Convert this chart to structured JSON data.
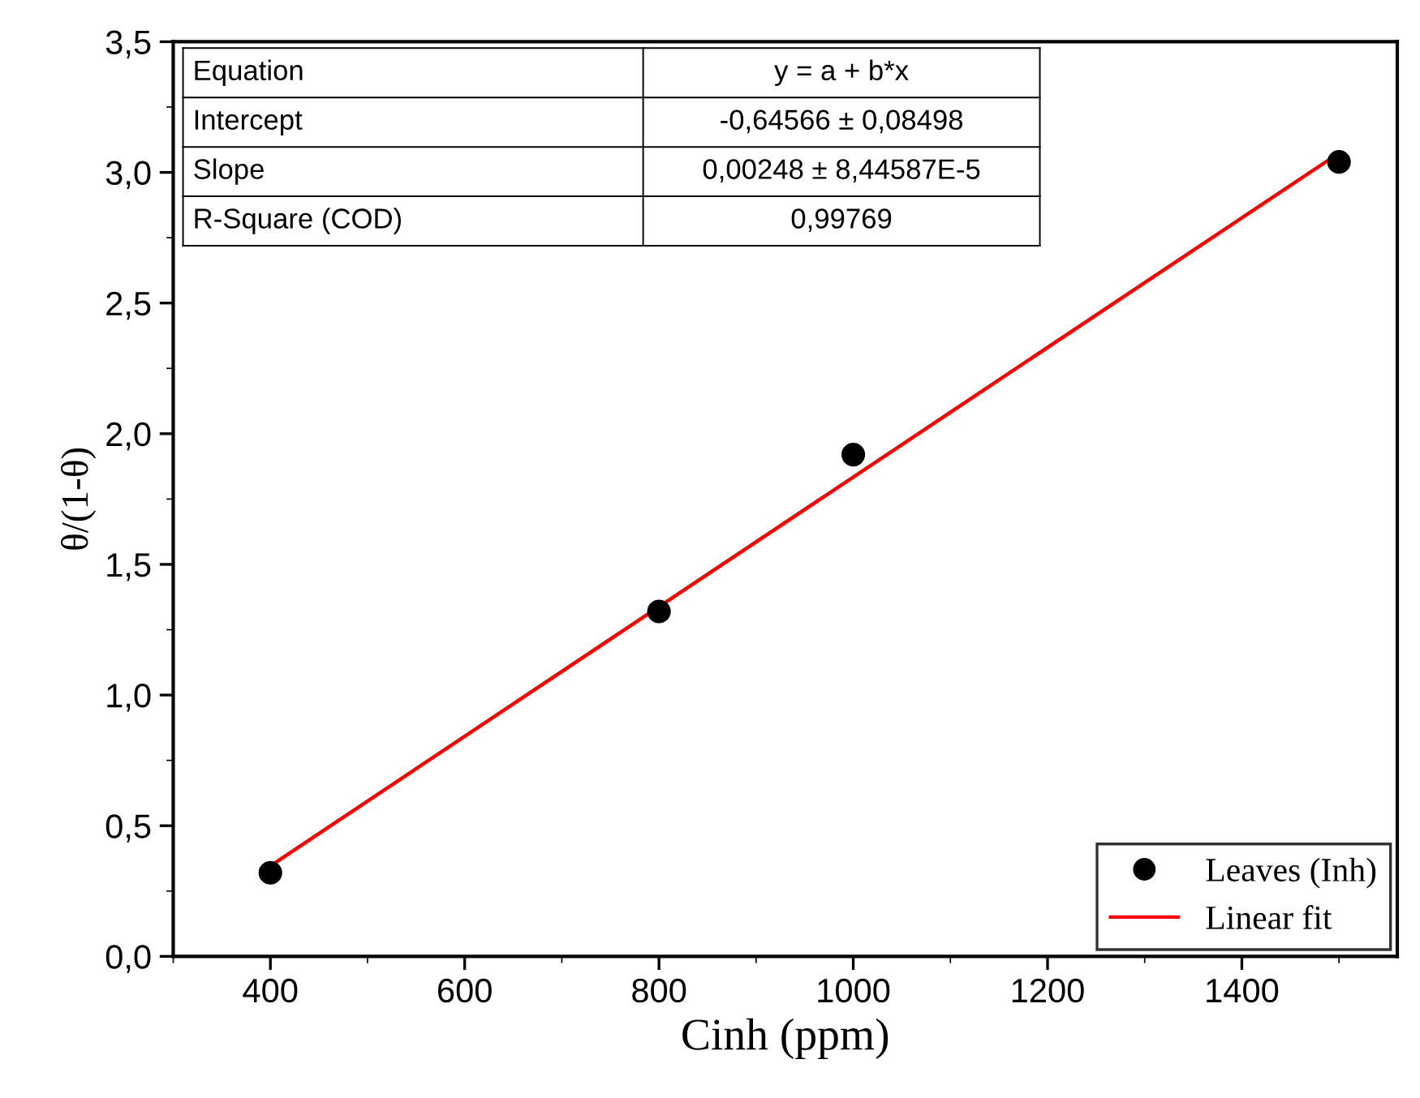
{
  "chart_data": {
    "type": "scatter",
    "xlabel": "Cinh (ppm)",
    "ylabel": "θ/(1-θ)",
    "x": [
      400,
      800,
      1000,
      1500
    ],
    "series": [
      {
        "name": "Leaves (Inh)",
        "color": "#000000",
        "values": [
          0.32,
          1.32,
          1.92,
          3.04
        ],
        "marker": "circle"
      },
      {
        "name": "Linear fit",
        "type": "line",
        "color": "#ff0000",
        "x": [
          400,
          1500
        ],
        "values": [
          0.346,
          3.074
        ],
        "line_style": "solid"
      }
    ],
    "annotations": [
      "Equation",
      "y = a + b*x",
      "Intercept",
      "-0,64566 ± 0,08498",
      "Slope",
      "0,00248 ± 8,44587E-5",
      "R-Square (COD)",
      "0,99769"
    ],
    "xlim": [
      300,
      1560
    ],
    "ylim": [
      0,
      3.5
    ],
    "xticks": [
      400,
      600,
      800,
      1000,
      1200,
      1400
    ],
    "yticks": [
      {
        "value": 0,
        "label": "0,0"
      },
      {
        "value": 0.5,
        "label": "0,5"
      },
      {
        "value": 1.0,
        "label": "1,0"
      },
      {
        "value": 1.5,
        "label": "1,5"
      },
      {
        "value": 2.0,
        "label": "2,0"
      },
      {
        "value": 2.5,
        "label": "2,5"
      },
      {
        "value": 3.0,
        "label": "3,0"
      },
      {
        "value": 3.5,
        "label": "3,5"
      }
    ],
    "legend": "bottom right",
    "grid": false
  }
}
